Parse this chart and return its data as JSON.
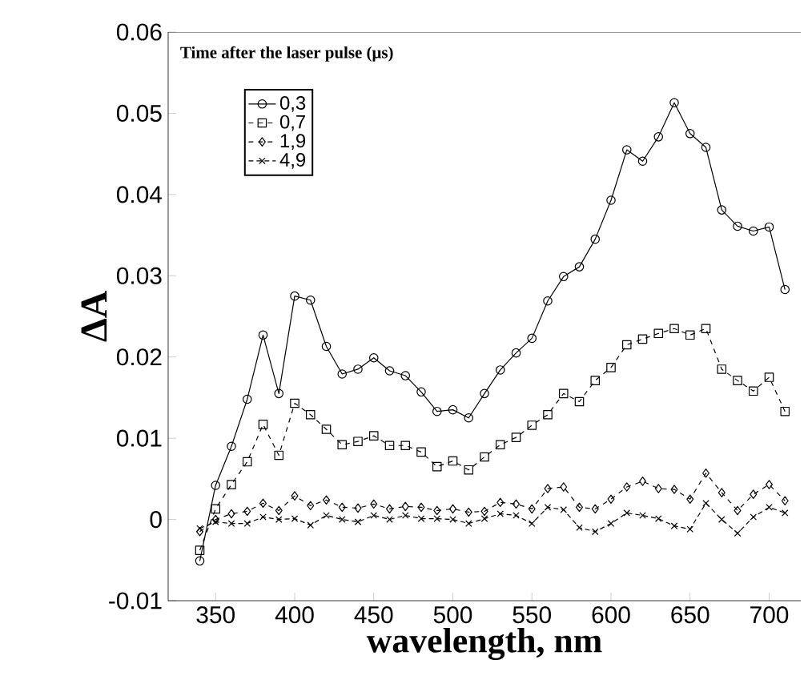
{
  "chart_data": {
    "type": "line",
    "xlabel": "wavelength, nm",
    "ylabel": "ΔA",
    "legend_title": "Time after the laser pulse (μs)",
    "legend": "top left",
    "x": [
      340,
      350,
      360,
      370,
      380,
      390,
      400,
      410,
      420,
      430,
      440,
      450,
      460,
      470,
      480,
      490,
      500,
      510,
      520,
      530,
      540,
      550,
      560,
      570,
      580,
      590,
      600,
      610,
      620,
      630,
      640,
      650,
      660,
      670,
      680,
      690,
      700,
      710
    ],
    "xlim": [
      320,
      720
    ],
    "ylim": [
      -0.01,
      0.06
    ],
    "xticks": [
      350,
      400,
      450,
      500,
      550,
      600,
      650,
      700
    ],
    "yticks": [
      -0.01,
      0,
      0.01,
      0.02,
      0.03,
      0.04,
      0.05,
      0.06
    ],
    "series": [
      {
        "name": "0,3",
        "color": "#000000",
        "marker": "circle",
        "line_style": "solid",
        "values": [
          -0.0051,
          0.0042,
          0.009,
          0.0148,
          0.0227,
          0.0155,
          0.0275,
          0.027,
          0.0213,
          0.0179,
          0.0185,
          0.0199,
          0.0183,
          0.0177,
          0.0157,
          0.0133,
          0.0135,
          0.0125,
          0.0155,
          0.0184,
          0.0205,
          0.0223,
          0.0269,
          0.0299,
          0.0311,
          0.0345,
          0.0393,
          0.0455,
          0.0441,
          0.0471,
          0.0513,
          0.0475,
          0.0458,
          0.0381,
          0.0361,
          0.0355,
          0.036,
          0.0283
        ]
      },
      {
        "name": "0,7",
        "color": "#000000",
        "marker": "square",
        "line_style": "dashed",
        "values": [
          -0.0038,
          0.0013,
          0.0043,
          0.0071,
          0.0117,
          0.0079,
          0.0143,
          0.0129,
          0.0111,
          0.0092,
          0.0096,
          0.0103,
          0.0091,
          0.0091,
          0.0083,
          0.0065,
          0.0072,
          0.0061,
          0.0077,
          0.0092,
          0.0101,
          0.0116,
          0.0129,
          0.0155,
          0.0145,
          0.0171,
          0.0187,
          0.0215,
          0.0222,
          0.0229,
          0.0235,
          0.0227,
          0.0235,
          0.0185,
          0.0171,
          0.0158,
          0.0175,
          0.0133
        ]
      },
      {
        "name": "1,9",
        "color": "#000000",
        "marker": "diamond",
        "line_style": "dashed",
        "values": [
          -0.0015,
          0.0,
          0.0007,
          0.001,
          0.002,
          0.0011,
          0.0029,
          0.0017,
          0.0024,
          0.0015,
          0.0014,
          0.0019,
          0.0013,
          0.0016,
          0.0015,
          0.0011,
          0.0013,
          0.0009,
          0.001,
          0.0021,
          0.0019,
          0.0013,
          0.0038,
          0.004,
          0.0015,
          0.0013,
          0.0025,
          0.004,
          0.0047,
          0.0038,
          0.0037,
          0.0025,
          0.0057,
          0.0033,
          0.0011,
          0.0031,
          0.0043,
          0.0023
        ]
      },
      {
        "name": "4,9",
        "color": "#000000",
        "marker": "cross",
        "line_style": "dotted",
        "values": [
          -0.0011,
          -0.0003,
          -0.0005,
          -0.0005,
          0.0003,
          0.0,
          0.0001,
          -0.0007,
          0.0005,
          0.0,
          -0.0003,
          0.0005,
          0.0,
          0.0005,
          0.0001,
          0.0001,
          0.0,
          -0.0005,
          0.0001,
          0.0007,
          0.0005,
          -0.0005,
          0.0015,
          0.0012,
          -0.001,
          -0.0015,
          -0.0005,
          0.0008,
          0.0005,
          0.0001,
          -0.0008,
          -0.0012,
          0.002,
          0.0,
          -0.0017,
          0.0003,
          0.0015,
          0.0008
        ]
      }
    ]
  }
}
